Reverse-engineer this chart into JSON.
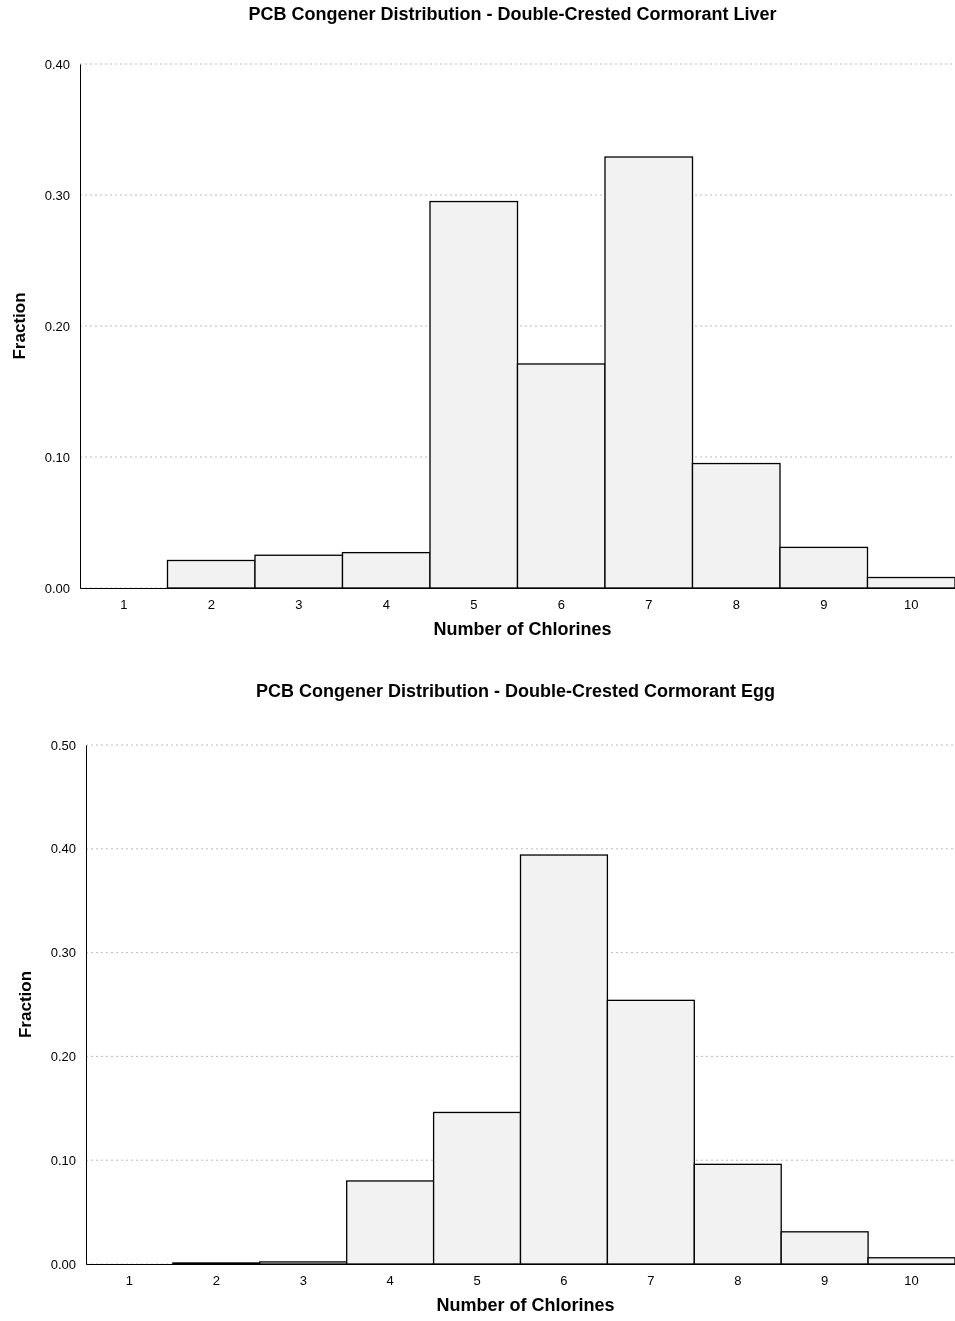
{
  "chart_data": [
    {
      "type": "bar",
      "title": "PCB Congener Distribution - Double-Crested Cormorant Liver",
      "xlabel": "Number of Chlorines",
      "ylabel": "Fraction",
      "categories": [
        "1",
        "2",
        "3",
        "4",
        "5",
        "6",
        "7",
        "8",
        "9",
        "10"
      ],
      "values": [
        0,
        0.021,
        0.025,
        0.027,
        0.295,
        0.171,
        0.329,
        0.095,
        0.031,
        0.008
      ],
      "color": "#f2f2f2",
      "ylim": [
        0,
        0.4
      ],
      "yticks": [
        {
          "value": 0,
          "label": "0.00"
        },
        {
          "value": 0.1,
          "label": "0.10"
        },
        {
          "value": 0.2,
          "label": "0.20"
        },
        {
          "value": 0.3,
          "label": "0.30"
        },
        {
          "value": 0.4,
          "label": "0.40"
        }
      ],
      "grid": "y"
    },
    {
      "type": "bar",
      "title": "PCB Congener Distribution - Double-Crested Cormorant Egg",
      "xlabel": "Number of Chlorines",
      "ylabel": "Fraction",
      "categories": [
        "1",
        "2",
        "3",
        "4",
        "5",
        "6",
        "7",
        "8",
        "9",
        "10"
      ],
      "values": [
        0,
        0.001,
        0.002,
        0.08,
        0.146,
        0.394,
        0.254,
        0.096,
        0.031,
        0.006
      ],
      "color": "#f2f2f2",
      "ylim": [
        0,
        0.5
      ],
      "yticks": [
        {
          "value": 0,
          "label": "0.00"
        },
        {
          "value": 0.1,
          "label": "0.10"
        },
        {
          "value": 0.2,
          "label": "0.20"
        },
        {
          "value": 0.3,
          "label": "0.30"
        },
        {
          "value": 0.4,
          "label": "0.40"
        },
        {
          "value": 0.5,
          "label": "0.50"
        }
      ],
      "grid": "y"
    }
  ]
}
